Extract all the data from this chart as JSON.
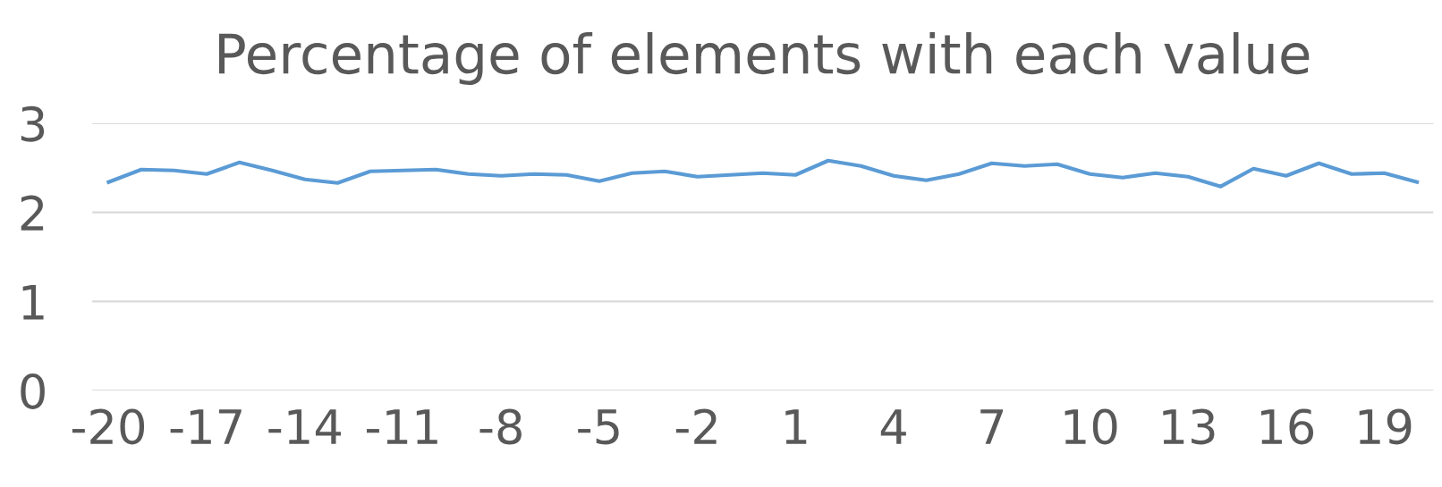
{
  "chart_data": {
    "type": "line",
    "title": "Percentage of elements with each value",
    "categories": [
      "-20",
      null,
      null,
      "-17",
      null,
      null,
      "-14",
      null,
      null,
      "-11",
      null,
      null,
      "-8",
      null,
      null,
      "-5",
      null,
      null,
      "-2",
      null,
      null,
      "1",
      null,
      null,
      "4",
      null,
      null,
      "7",
      null,
      null,
      "10",
      null,
      null,
      "13",
      null,
      null,
      "16",
      null,
      null,
      "19",
      null
    ],
    "series": [
      {
        "color": "#5b9bd5",
        "values": [
          2.34,
          2.48,
          2.47,
          2.43,
          2.56,
          2.47,
          2.37,
          2.33,
          2.46,
          2.47,
          2.48,
          2.43,
          2.41,
          2.43,
          2.42,
          2.35,
          2.44,
          2.46,
          2.4,
          2.42,
          2.44,
          2.42,
          2.58,
          2.52,
          2.41,
          2.36,
          2.43,
          2.55,
          2.52,
          2.54,
          2.43,
          2.39,
          2.44,
          2.4,
          2.29,
          2.49,
          2.41,
          2.55,
          2.43,
          2.44,
          2.34
        ]
      }
    ],
    "ylim": [
      0,
      3
    ],
    "yticks": [
      0,
      1,
      2,
      3
    ],
    "grid": "y",
    "marker": "none",
    "line_style": "solid"
  }
}
